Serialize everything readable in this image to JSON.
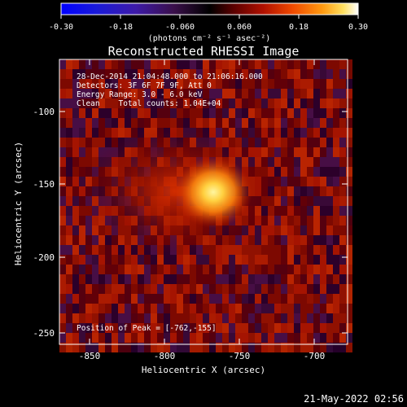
{
  "colorbar": {
    "ticks": [
      "-0.30",
      "-0.18",
      "-0.060",
      "0.060",
      "0.18",
      "0.30"
    ],
    "unit_label": "(photons cm⁻² s⁻¹ asec⁻²)"
  },
  "plot": {
    "title": "Reconstructed RHESSI Image",
    "info_lines": [
      "28-Dec-2014 21:04:48.000 to 21:06:16.000",
      "Detectors: 3F 6F 7F 9F, Att 0",
      "Energy Range: 3.0 - 6.0 keV",
      "Clean    Total counts: 1.04E+04"
    ],
    "peak_label": "Position of Peak = [-762,-155]",
    "x_ticks": [
      "-850",
      "-800",
      "-750",
      "-700"
    ],
    "y_ticks": [
      "-100",
      "-150",
      "-200",
      "-250"
    ],
    "xlabel": "Heliocentric X (arcsec)",
    "ylabel": "Heliocentric Y (arcsec)"
  },
  "footer_timestamp": "21-May-2022 02:56"
}
